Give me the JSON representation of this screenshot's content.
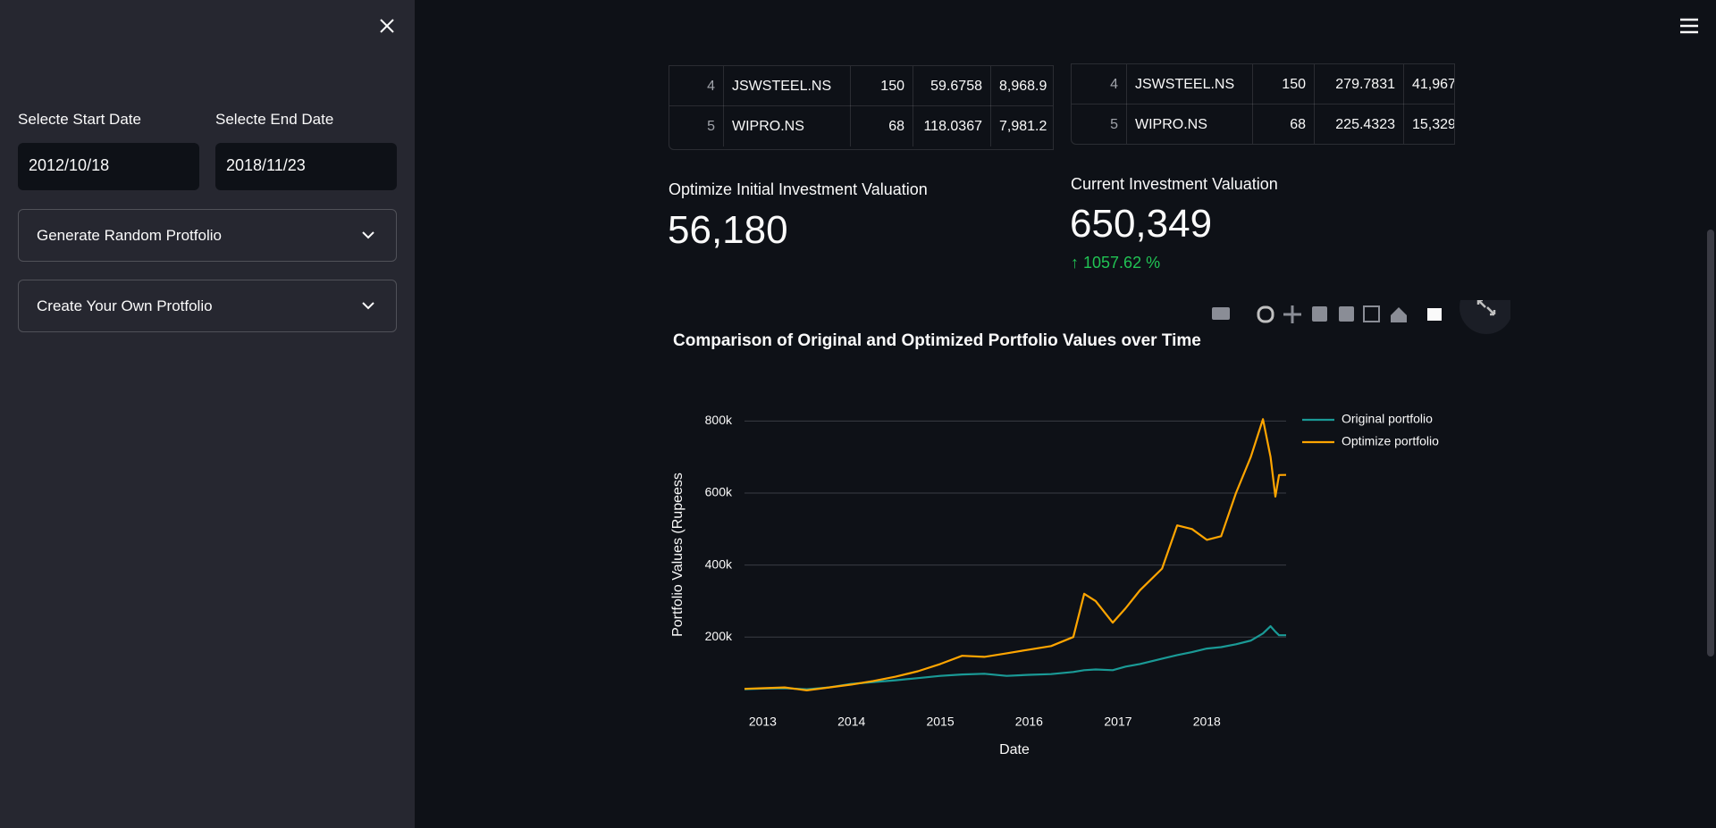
{
  "sidebar": {
    "start_date_label": "Selecte Start Date",
    "start_date": "2012/10/18",
    "end_date_label": "Selecte End Date",
    "end_date": "2018/11/23",
    "expanders": [
      "Generate Random Protfolio",
      "Create Your Own Protfolio"
    ]
  },
  "tables": [
    {
      "rows": [
        [
          "4",
          "JSWSTEEL.NS",
          "150",
          "59.6758",
          "8,968.9"
        ],
        [
          "5",
          "WIPRO.NS",
          "68",
          "118.0367",
          "7,981.2"
        ]
      ]
    },
    {
      "rows": [
        [
          "4",
          "JSWSTEEL.NS",
          "150",
          "279.7831",
          "41,967"
        ],
        [
          "5",
          "WIPRO.NS",
          "68",
          "225.4323",
          "15,329"
        ]
      ]
    }
  ],
  "metrics": [
    {
      "label": "Optimize Initial Investment Valuation",
      "value": "56,180"
    },
    {
      "label": "Current Investment Valuation",
      "value": "650,349",
      "delta": "1057.62 %"
    }
  ],
  "chart_data": {
    "type": "line",
    "title": "Comparison of Original and Optimized Portfolio Values over Time",
    "x_label": "Date",
    "y_label": "Portfolio Values (Rupeess",
    "x": [
      "2012-10-18",
      "2013-01-01",
      "2013-04-01",
      "2013-07-01",
      "2013-10-01",
      "2014-01-01",
      "2014-04-01",
      "2014-07-01",
      "2014-10-01",
      "2015-01-01",
      "2015-04-01",
      "2015-07-01",
      "2015-10-01",
      "2016-01-01",
      "2016-04-01",
      "2016-07-01",
      "2016-08-15",
      "2016-10-01",
      "2016-12-10",
      "2017-02-01",
      "2017-04-01",
      "2017-07-01",
      "2017-09-01",
      "2017-11-01",
      "2018-01-01",
      "2018-03-01",
      "2018-05-01",
      "2018-07-01",
      "2018-08-20",
      "2018-09-20",
      "2018-10-10",
      "2018-10-25",
      "2018-11-23"
    ],
    "series": [
      {
        "name": "Original portfolio",
        "color": "#1a9a96",
        "values": [
          55000,
          57000,
          58000,
          55000,
          60000,
          70000,
          75000,
          80000,
          86000,
          92000,
          96000,
          98000,
          92000,
          95000,
          97000,
          103000,
          108000,
          110000,
          108000,
          118000,
          125000,
          140000,
          150000,
          158000,
          168000,
          172000,
          180000,
          190000,
          210000,
          230000,
          215000,
          205000,
          205000
        ]
      },
      {
        "name": "Optimize portfolio",
        "color": "#ffa500",
        "values": [
          56180,
          58000,
          60000,
          52000,
          60000,
          68000,
          78000,
          90000,
          105000,
          125000,
          148000,
          145000,
          155000,
          165000,
          175000,
          200000,
          320000,
          300000,
          240000,
          280000,
          330000,
          390000,
          510000,
          500000,
          470000,
          480000,
          600000,
          700000,
          805000,
          700000,
          590000,
          650000,
          650349
        ]
      }
    ],
    "xlim": [
      "2012-10-18",
      "2018-11-23"
    ],
    "xticks": [
      {
        "value": "2013-01-01",
        "label": "2013"
      },
      {
        "value": "2014-01-01",
        "label": "2014"
      },
      {
        "value": "2015-01-01",
        "label": "2015"
      },
      {
        "value": "2016-01-01",
        "label": "2016"
      },
      {
        "value": "2017-01-01",
        "label": "2017"
      },
      {
        "value": "2018-01-01",
        "label": "2018"
      }
    ],
    "ylim": [
      12000,
      843000
    ],
    "yticks": [
      {
        "value": 200000,
        "label": "200k"
      },
      {
        "value": 400000,
        "label": "400k"
      },
      {
        "value": 600000,
        "label": "600k"
      },
      {
        "value": 800000,
        "label": "800k"
      }
    ],
    "grid": true
  }
}
